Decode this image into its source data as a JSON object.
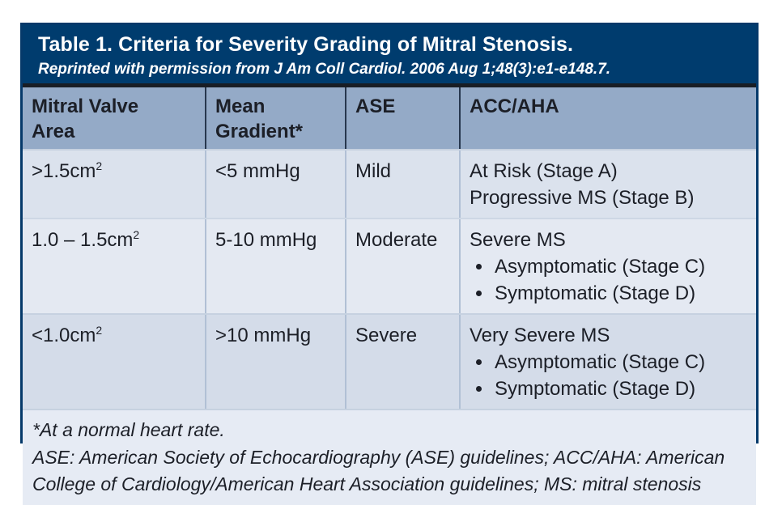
{
  "table": {
    "title": "Table 1. Criteria for Severity Grading of Mitral Stenosis.",
    "subtitle": "Reprinted with permission from J Am Coll Cardiol. 2006 Aug 1;48(3):e1-e148.7.",
    "columns": [
      {
        "label": "Mitral Valve Area",
        "lines": [
          "Mitral Valve",
          "Area"
        ]
      },
      {
        "label": "Mean Gradient*",
        "lines": [
          "Mean",
          "Gradient*"
        ]
      },
      {
        "label": "ASE",
        "lines": [
          "ASE",
          ""
        ]
      },
      {
        "label": "ACC/AHA",
        "lines": [
          "ACC/AHA",
          ""
        ]
      }
    ],
    "rows": [
      {
        "area_base": ">1.5cm",
        "area_sup": "2",
        "gradient": "<5 mmHg",
        "ase": "Mild",
        "acc_head": "At Risk (Stage A)",
        "acc_line2": "Progressive MS (Stage B)",
        "acc_bullets": [
          "",
          ""
        ]
      },
      {
        "area_base": "1.0 – 1.5cm",
        "area_sup": "2",
        "gradient": "5-10 mmHg",
        "ase": "Moderate",
        "acc_head": "Severe MS",
        "acc_line2": "",
        "acc_bullets": [
          "Asymptomatic (Stage C)",
          "Symptomatic (Stage D)"
        ]
      },
      {
        "area_base": "<1.0cm",
        "area_sup": "2",
        "gradient": ">10 mmHg",
        "ase": "Severe",
        "acc_head": "Very Severe MS",
        "acc_line2": "",
        "acc_bullets": [
          "Asymptomatic (Stage C)",
          "Symptomatic (Stage D)"
        ]
      }
    ],
    "footnotes": [
      "*At a normal heart rate.",
      "ASE: American Society of Echocardiography (ASE) guidelines; ACC/AHA: American College of Cardiology/American Heart Association guidelines; MS: mitral stenosis"
    ]
  },
  "colors": {
    "header_navy": "#003c6e",
    "dark_rule": "#191d24",
    "column_header_bg": "#94aac7",
    "row1_bg": "#dbe2ed",
    "row2_bg": "#e4e9f2",
    "row3_bg": "#d4dce9",
    "footer_bg": "#e6ebf4",
    "outer_border": "#05396a",
    "text": "#1c1f27"
  },
  "chart_data": {
    "type": "table",
    "title": "Table 1. Criteria for Severity Grading of Mitral Stenosis.",
    "columns": [
      "Mitral Valve Area",
      "Mean Gradient*",
      "ASE",
      "ACC/AHA"
    ],
    "rows": [
      [
        ">1.5cm2",
        "<5 mmHg",
        "Mild",
        "At Risk (Stage A); Progressive MS (Stage B)"
      ],
      [
        "1.0 – 1.5cm2",
        "5-10 mmHg",
        "Moderate",
        "Severe MS: Asymptomatic (Stage C); Symptomatic (Stage D)"
      ],
      [
        "<1.0cm2",
        ">10 mmHg",
        "Severe",
        "Very Severe MS: Asymptomatic (Stage C); Symptomatic (Stage D)"
      ]
    ]
  }
}
